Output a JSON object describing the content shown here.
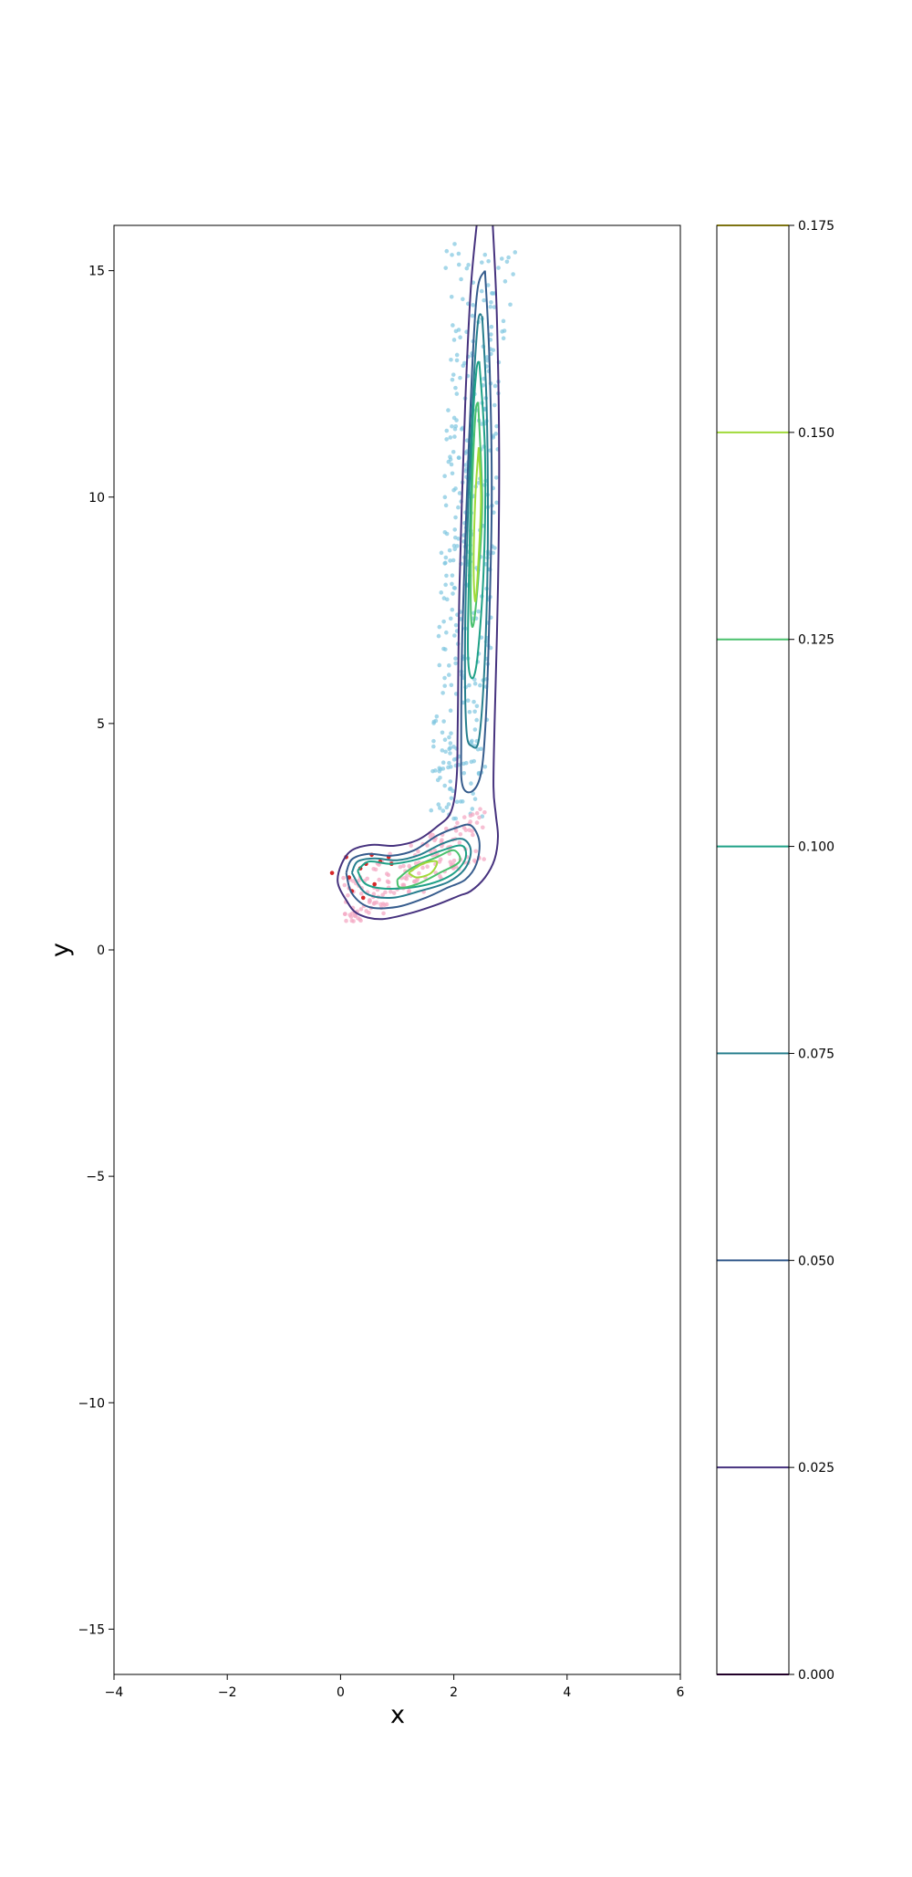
{
  "chart_data": {
    "type": "contour",
    "xlabel": "x",
    "ylabel": "y",
    "xlim": [
      -4,
      6
    ],
    "ylim": [
      -16,
      16
    ],
    "xticks": [
      -4,
      -2,
      0,
      2,
      4,
      6
    ],
    "yticks": [
      -15,
      -10,
      -5,
      0,
      5,
      10,
      15
    ],
    "xtick_labels": [
      "−4",
      "−2",
      "0",
      "2",
      "4",
      "6"
    ],
    "ytick_labels": [
      "−15",
      "−10",
      "−5",
      "0",
      "5",
      "10",
      "15"
    ],
    "colorbar": {
      "levels": [
        0.0,
        0.025,
        0.05,
        0.075,
        0.1,
        0.125,
        0.15,
        0.175
      ],
      "tick_labels": [
        "0.000",
        "0.025",
        "0.050",
        "0.075",
        "0.100",
        "0.125",
        "0.150",
        "0.175"
      ],
      "colors": [
        "#440154",
        "#46327e",
        "#365c8d",
        "#277f8e",
        "#1fa187",
        "#4ac16d",
        "#a0da39",
        "#fde725"
      ]
    },
    "contours": [
      {
        "level": 0.025,
        "color": "#46327e",
        "paths": [
          [
            [
              2.68,
              16.2
            ],
            [
              2.76,
              14.0
            ],
            [
              2.8,
              11.0
            ],
            [
              2.78,
              8.0
            ],
            [
              2.72,
              5.0
            ],
            [
              2.7,
              3.6
            ],
            [
              2.74,
              3.0
            ],
            [
              2.78,
              2.5
            ],
            [
              2.72,
              2.0
            ],
            [
              2.55,
              1.6
            ],
            [
              2.3,
              1.3
            ],
            [
              2.1,
              1.2
            ],
            [
              1.7,
              1.0
            ],
            [
              1.2,
              0.8
            ],
            [
              0.7,
              0.68
            ],
            [
              0.3,
              0.8
            ],
            [
              0.1,
              1.1
            ],
            [
              -0.05,
              1.5
            ],
            [
              0.02,
              1.9
            ],
            [
              0.2,
              2.2
            ],
            [
              0.55,
              2.32
            ],
            [
              0.95,
              2.3
            ],
            [
              1.35,
              2.42
            ],
            [
              1.7,
              2.72
            ],
            [
              1.95,
              3.05
            ],
            [
              2.05,
              3.8
            ],
            [
              2.07,
              5.0
            ],
            [
              2.1,
              8.0
            ],
            [
              2.2,
              12.0
            ],
            [
              2.3,
              14.6
            ],
            [
              2.42,
              16.2
            ]
          ]
        ]
      },
      {
        "level": 0.05,
        "color": "#365c8d",
        "paths": [
          [
            [
              2.55,
              15.0
            ],
            [
              2.63,
              13.0
            ],
            [
              2.67,
              10.0
            ],
            [
              2.62,
              7.0
            ],
            [
              2.56,
              5.0
            ],
            [
              2.48,
              3.9
            ],
            [
              2.32,
              3.5
            ],
            [
              2.15,
              3.65
            ],
            [
              2.13,
              4.6
            ],
            [
              2.15,
              7.0
            ],
            [
              2.23,
              10.0
            ],
            [
              2.33,
              13.0
            ],
            [
              2.42,
              14.6
            ],
            [
              2.55,
              15.0
            ]
          ],
          [
            [
              0.1,
              1.7
            ],
            [
              0.2,
              2.0
            ],
            [
              0.5,
              2.12
            ],
            [
              0.9,
              2.08
            ],
            [
              1.3,
              2.2
            ],
            [
              1.7,
              2.52
            ],
            [
              2.05,
              2.7
            ],
            [
              2.3,
              2.75
            ],
            [
              2.45,
              2.4
            ],
            [
              2.4,
              1.9
            ],
            [
              2.2,
              1.55
            ],
            [
              1.9,
              1.38
            ],
            [
              1.5,
              1.15
            ],
            [
              1.0,
              0.95
            ],
            [
              0.5,
              0.95
            ],
            [
              0.2,
              1.25
            ],
            [
              0.1,
              1.7
            ]
          ]
        ]
      },
      {
        "level": 0.075,
        "color": "#277f8e",
        "paths": [
          [
            [
              2.5,
              14.0
            ],
            [
              2.58,
              12.0
            ],
            [
              2.6,
              9.0
            ],
            [
              2.55,
              6.5
            ],
            [
              2.45,
              4.7
            ],
            [
              2.32,
              4.5
            ],
            [
              2.22,
              4.9
            ],
            [
              2.2,
              7.0
            ],
            [
              2.26,
              10.0
            ],
            [
              2.35,
              12.5
            ],
            [
              2.43,
              13.9
            ],
            [
              2.5,
              14.0
            ]
          ],
          [
            [
              0.2,
              1.7
            ],
            [
              0.3,
              1.95
            ],
            [
              0.6,
              2.02
            ],
            [
              1.0,
              1.98
            ],
            [
              1.4,
              2.1
            ],
            [
              1.8,
              2.35
            ],
            [
              2.15,
              2.45
            ],
            [
              2.3,
              2.2
            ],
            [
              2.2,
              1.8
            ],
            [
              1.9,
              1.5
            ],
            [
              1.4,
              1.3
            ],
            [
              0.9,
              1.15
            ],
            [
              0.45,
              1.25
            ],
            [
              0.2,
              1.7
            ]
          ]
        ]
      },
      {
        "level": 0.1,
        "color": "#1fa187",
        "paths": [
          [
            [
              2.45,
              13.0
            ],
            [
              2.55,
              11.0
            ],
            [
              2.53,
              8.5
            ],
            [
              2.42,
              6.5
            ],
            [
              2.32,
              6.0
            ],
            [
              2.25,
              6.6
            ],
            [
              2.28,
              9.0
            ],
            [
              2.33,
              11.5
            ],
            [
              2.4,
              12.8
            ],
            [
              2.45,
              13.0
            ]
          ],
          [
            [
              0.3,
              1.75
            ],
            [
              0.5,
              1.95
            ],
            [
              0.9,
              1.9
            ],
            [
              1.35,
              2.0
            ],
            [
              1.8,
              2.2
            ],
            [
              2.15,
              2.3
            ],
            [
              2.2,
              2.0
            ],
            [
              1.95,
              1.65
            ],
            [
              1.45,
              1.42
            ],
            [
              0.85,
              1.35
            ],
            [
              0.45,
              1.45
            ],
            [
              0.3,
              1.75
            ]
          ]
        ]
      },
      {
        "level": 0.125,
        "color": "#4ac16d",
        "paths": [
          [
            [
              2.43,
              12.1
            ],
            [
              2.5,
              10.0
            ],
            [
              2.45,
              8.5
            ],
            [
              2.35,
              7.2
            ],
            [
              2.3,
              7.6
            ],
            [
              2.32,
              10.0
            ],
            [
              2.38,
              11.8
            ],
            [
              2.43,
              12.1
            ]
          ],
          [
            [
              1.0,
              1.55
            ],
            [
              1.25,
              1.8
            ],
            [
              1.7,
              2.05
            ],
            [
              2.0,
              2.2
            ],
            [
              2.1,
              1.95
            ],
            [
              1.75,
              1.7
            ],
            [
              1.35,
              1.45
            ],
            [
              1.05,
              1.38
            ],
            [
              1.0,
              1.55
            ]
          ]
        ]
      },
      {
        "level": 0.15,
        "color": "#a0da39",
        "paths": [
          [
            [
              2.44,
              11.1
            ],
            [
              2.48,
              10.0
            ],
            [
              2.44,
              8.7
            ],
            [
              2.38,
              7.7
            ],
            [
              2.35,
              8.5
            ],
            [
              2.38,
              10.0
            ],
            [
              2.44,
              11.1
            ]
          ],
          [
            [
              1.2,
              1.7
            ],
            [
              1.45,
              1.9
            ],
            [
              1.7,
              1.95
            ],
            [
              1.6,
              1.7
            ],
            [
              1.35,
              1.6
            ],
            [
              1.2,
              1.7
            ]
          ]
        ]
      }
    ],
    "scatter": {
      "blue_color": "#7fc6e0",
      "pink_color": "#f4a9c4",
      "red_color": "#d62728",
      "red_points": [
        [
          -0.15,
          1.7
        ],
        [
          0.1,
          2.05
        ],
        [
          0.2,
          1.3
        ],
        [
          0.35,
          1.8
        ],
        [
          0.45,
          1.9
        ],
        [
          0.55,
          2.1
        ],
        [
          0.7,
          1.95
        ],
        [
          0.85,
          2.05
        ],
        [
          0.9,
          1.9
        ],
        [
          0.15,
          1.6
        ],
        [
          0.6,
          1.45
        ],
        [
          0.4,
          1.15
        ]
      ]
    }
  }
}
